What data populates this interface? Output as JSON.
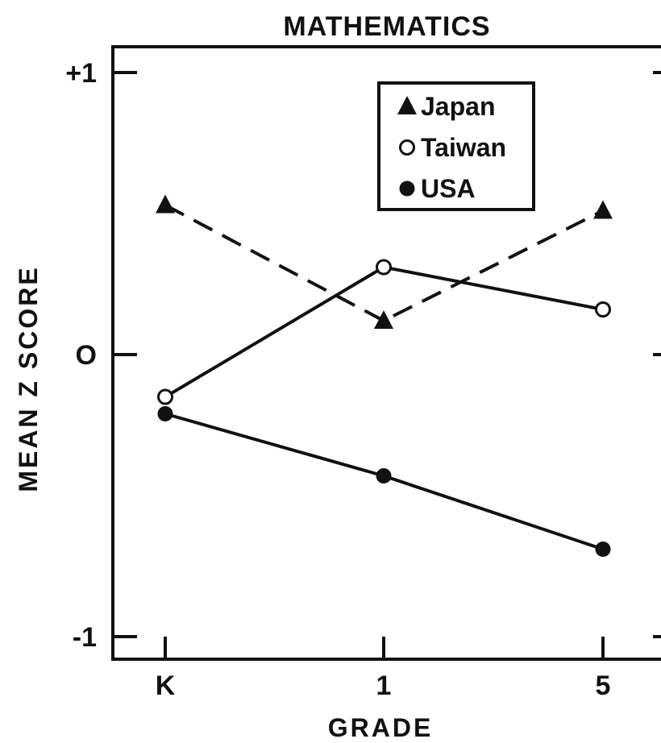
{
  "chart_data": {
    "type": "line",
    "title": "MATHEMATICS",
    "xlabel": "GRADE",
    "ylabel": "MEAN Z SCORE",
    "categories": [
      "K",
      "1",
      "5"
    ],
    "yticks": [
      {
        "value": 1,
        "label": "+1"
      },
      {
        "value": 0,
        "label": "O"
      },
      {
        "value": -1,
        "label": "-1"
      }
    ],
    "ylim": [
      -1.1,
      1.1
    ],
    "series": [
      {
        "name": "Japan",
        "marker": "triangle",
        "line": "dashed",
        "values": [
          0.53,
          0.12,
          0.51
        ]
      },
      {
        "name": "Taiwan",
        "marker": "open-circle",
        "line": "solid",
        "values": [
          -0.15,
          0.31,
          0.16
        ]
      },
      {
        "name": "USA",
        "marker": "filled-circle",
        "line": "solid",
        "values": [
          -0.21,
          -0.43,
          -0.69
        ]
      }
    ],
    "legend_position": "top-right",
    "color": "#111111"
  }
}
